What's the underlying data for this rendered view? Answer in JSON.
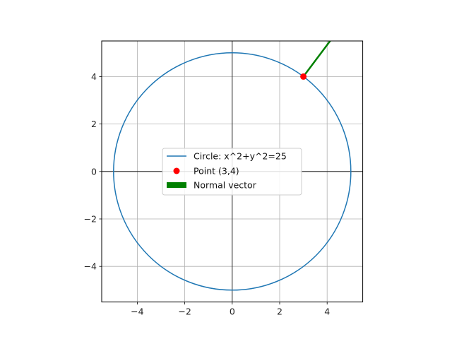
{
  "chart_data": {
    "type": "line",
    "title": "",
    "xlabel": "",
    "ylabel": "",
    "xlim": [
      -5.5,
      5.5
    ],
    "ylim": [
      -5.5,
      5.5
    ],
    "xticks": [
      -4,
      -2,
      0,
      2,
      4
    ],
    "yticks": [
      -4,
      -2,
      0,
      2,
      4
    ],
    "xtick_labels": [
      "−4",
      "−2",
      "0",
      "2",
      "4"
    ],
    "ytick_labels": [
      "−4",
      "−2",
      "0",
      "2",
      "4"
    ],
    "grid": true,
    "aspect": "equal",
    "axis_lines_through_origin": true,
    "series": [
      {
        "name": "Circle: x^2+y^2=25",
        "kind": "circle",
        "center": [
          0,
          0
        ],
        "radius": 5,
        "color": "#1f77b4"
      },
      {
        "name": "Point (3,4)",
        "kind": "point",
        "x": 3,
        "y": 4,
        "color": "#ff0000"
      },
      {
        "name": "Normal vector",
        "kind": "arrow",
        "start": [
          3,
          4
        ],
        "end": [
          6,
          8
        ],
        "color": "#008000"
      }
    ],
    "legend": {
      "placement": "center",
      "entries": [
        "Circle: x^2+y^2=25",
        "Point (3,4)",
        "Normal vector"
      ]
    }
  }
}
